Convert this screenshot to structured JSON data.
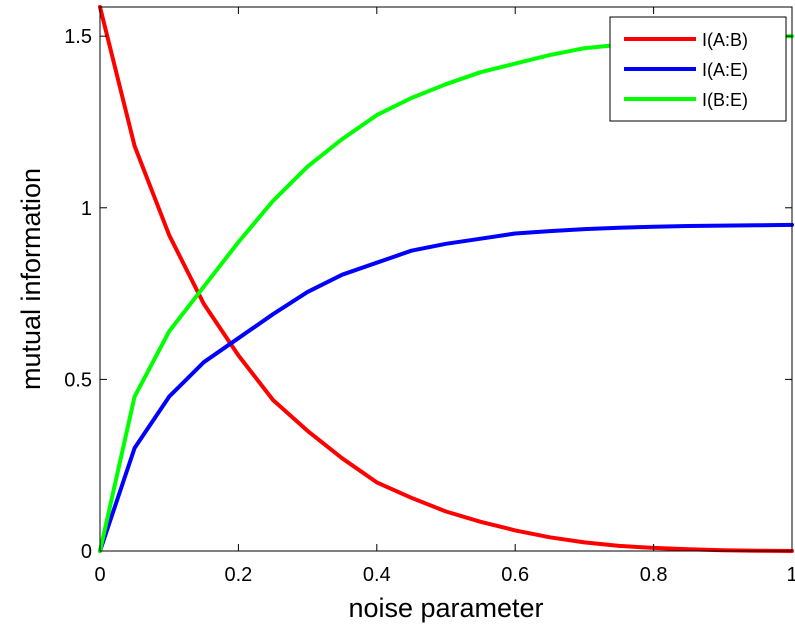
{
  "chart_data": {
    "type": "line",
    "title": "",
    "xlabel": "noise parameter",
    "ylabel": "mutual information",
    "xlim": [
      0,
      1
    ],
    "ylim": [
      0,
      1.585
    ],
    "x_ticks": [
      0,
      0.2,
      0.4,
      0.6,
      0.8,
      1
    ],
    "x_tick_labels": [
      "0",
      "0.2",
      "0.4",
      "0.6",
      "0.8",
      "1"
    ],
    "y_ticks": [
      0,
      0.5,
      1,
      1.5
    ],
    "y_tick_labels": [
      "0",
      "0.5",
      "1",
      "1.5"
    ],
    "grid": false,
    "legend_position": "top-right",
    "x": [
      0,
      0.05,
      0.1,
      0.15,
      0.2,
      0.25,
      0.3,
      0.35,
      0.4,
      0.45,
      0.5,
      0.55,
      0.6,
      0.65,
      0.7,
      0.75,
      0.8,
      0.85,
      0.9,
      0.95,
      1
    ],
    "series": [
      {
        "name": "I(A:B)",
        "color": "#ff0000",
        "values": [
          1.585,
          1.18,
          0.92,
          0.72,
          0.57,
          0.44,
          0.35,
          0.27,
          0.2,
          0.155,
          0.115,
          0.085,
          0.06,
          0.04,
          0.025,
          0.015,
          0.009,
          0.005,
          0.002,
          0.001,
          0
        ]
      },
      {
        "name": "I(A:E)",
        "color": "#0000ff",
        "values": [
          0,
          0.3,
          0.45,
          0.55,
          0.62,
          0.69,
          0.755,
          0.805,
          0.84,
          0.875,
          0.895,
          0.91,
          0.925,
          0.932,
          0.938,
          0.942,
          0.945,
          0.947,
          0.948,
          0.949,
          0.95
        ]
      },
      {
        "name": "I(B:E)",
        "color": "#00ff00",
        "values": [
          0,
          0.45,
          0.64,
          0.77,
          0.9,
          1.02,
          1.12,
          1.2,
          1.27,
          1.32,
          1.36,
          1.395,
          1.42,
          1.445,
          1.465,
          1.475,
          1.485,
          1.49,
          1.495,
          1.498,
          1.5
        ]
      }
    ]
  }
}
